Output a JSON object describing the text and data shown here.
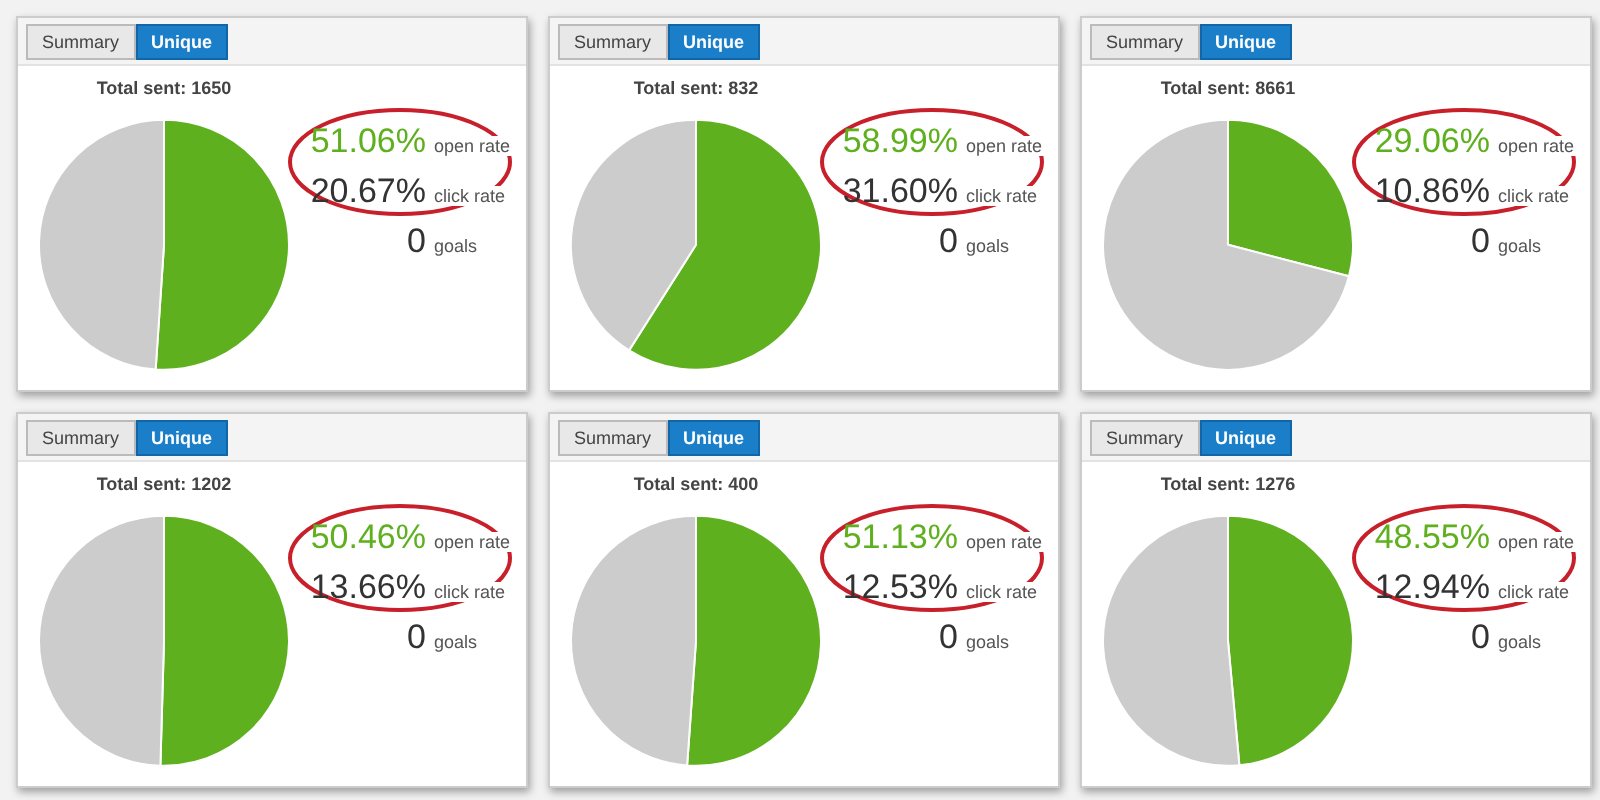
{
  "chart_data": [
    {
      "type": "pie",
      "title": "Total sent: 1650",
      "categories": [
        null,
        null
      ],
      "values": [
        51.06,
        48.94
      ],
      "colors": [
        "#5fb01e",
        "#cccccc"
      ],
      "annotations": [
        "Summary",
        "Unique",
        "51.06%",
        "open rate",
        "20.67%",
        "click rate",
        "0",
        "goals"
      ]
    },
    {
      "type": "pie",
      "title": "Total sent: 832",
      "categories": [
        null,
        null
      ],
      "values": [
        58.99,
        41.01
      ],
      "colors": [
        "#5fb01e",
        "#cccccc"
      ],
      "annotations": [
        "Summary",
        "Unique",
        "58.99%",
        "open rate",
        "31.60%",
        "click rate",
        "0",
        "goals"
      ]
    },
    {
      "type": "pie",
      "title": "Total sent: 8661",
      "categories": [
        null,
        null
      ],
      "values": [
        29.06,
        70.94
      ],
      "colors": [
        "#5fb01e",
        "#cccccc"
      ],
      "annotations": [
        "Summary",
        "Unique",
        "29.06%",
        "open rate",
        "10.86%",
        "click rate",
        "0",
        "goals"
      ]
    },
    {
      "type": "pie",
      "title": "Total sent: 1202",
      "categories": [
        null,
        null
      ],
      "values": [
        50.46,
        49.54
      ],
      "colors": [
        "#5fb01e",
        "#cccccc"
      ],
      "annotations": [
        "Summary",
        "Unique",
        "50.46%",
        "open rate",
        "13.66%",
        "click rate",
        "0",
        "goals"
      ]
    },
    {
      "type": "pie",
      "title": "Total sent: 400",
      "categories": [
        null,
        null
      ],
      "values": [
        51.13,
        48.87
      ],
      "colors": [
        "#5fb01e",
        "#cccccc"
      ],
      "annotations": [
        "Summary",
        "Unique",
        "51.13%",
        "open rate",
        "12.53%",
        "click rate",
        "0",
        "goals"
      ]
    },
    {
      "type": "pie",
      "title": "Total sent: 1276",
      "categories": [
        null,
        null
      ],
      "values": [
        48.55,
        51.45
      ],
      "colors": [
        "#5fb01e",
        "#cccccc"
      ],
      "annotations": [
        "Summary",
        "Unique",
        "48.55%",
        "open rate",
        "12.94%",
        "click rate",
        "0",
        "goals"
      ]
    }
  ]
}
